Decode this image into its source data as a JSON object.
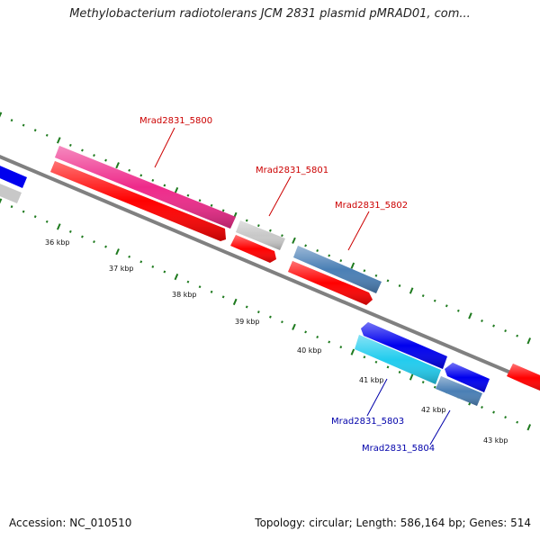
{
  "title": "Methylobacterium radiotolerans JCM 2831 plasmid pMRAD01, com...",
  "footer": {
    "accession": "Accession: NC_010510",
    "summary": "Topology: circular; Length: 586,164 bp; Genes: 514"
  },
  "scale_labels": [
    "36 kbp",
    "37 kbp",
    "38 kbp",
    "39 kbp",
    "40 kbp",
    "41 kbp",
    "42 kbp",
    "43 kbp"
  ],
  "gene_labels": {
    "g5800": "Mrad2831_5800",
    "g5801": "Mrad2831_5801",
    "g5802": "Mrad2831_5802",
    "g5803": "Mrad2831_5803",
    "g5804": "Mrad2831_5804"
  },
  "colors": {
    "backbone": "#808080",
    "tick": "#1e7a1e",
    "forward_label": "#cc0000",
    "reverse_label": "#0000aa",
    "red": "#ff0000",
    "magenta": "#ee2a8a",
    "gray": "#c8c8c8",
    "steelblue": "#4a7fb5",
    "blue": "#0000ee",
    "cyan": "#22ccee"
  }
}
